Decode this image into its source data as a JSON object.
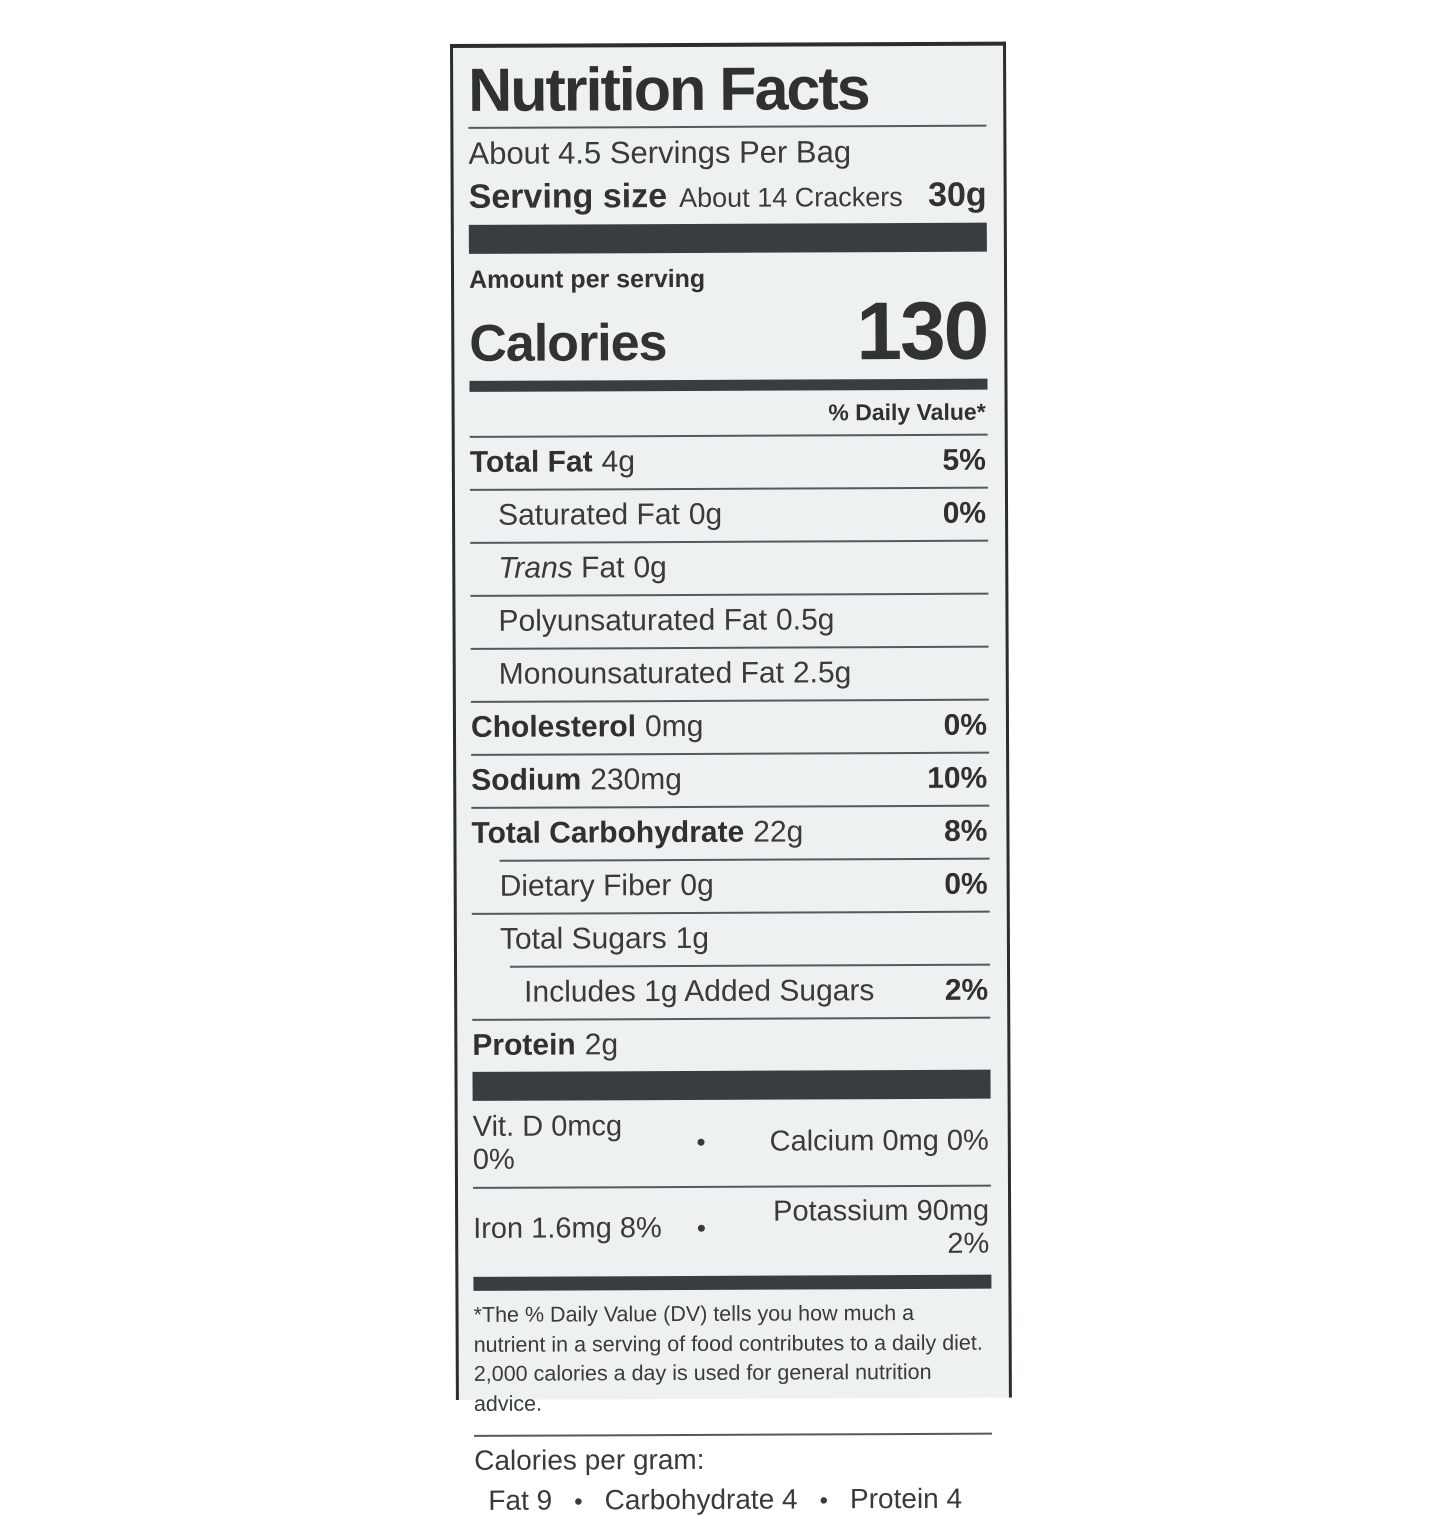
{
  "page": {
    "background": "#ffffff"
  },
  "label": {
    "title": "Nutrition Facts",
    "servings_per_bag": "About 4.5 Servings Per Bag",
    "serving_size": {
      "label": "Serving size",
      "detail": "About 14 Crackers",
      "weight": "30g"
    },
    "amount_per_serving": "Amount per serving",
    "calories": {
      "label": "Calories",
      "value": "130"
    },
    "daily_value_header": "% Daily Value*",
    "rows": [
      {
        "id": "total-fat",
        "name": "Total Fat",
        "bold": true,
        "value": "4g",
        "percent": "5%",
        "indent": 0,
        "sep": 0
      },
      {
        "id": "saturated-fat",
        "name": "Saturated Fat",
        "bold": false,
        "value": "0g",
        "percent": "0%",
        "indent": 1,
        "sep": 0
      },
      {
        "id": "trans-fat",
        "italic_prefix": "Trans",
        "name": " Fat",
        "bold": false,
        "value": "0g",
        "percent": "",
        "indent": 1,
        "sep": 0
      },
      {
        "id": "polyunsaturated-fat",
        "name": "Polyunsaturated Fat",
        "bold": false,
        "value": "0.5g",
        "percent": "",
        "indent": 1,
        "sep": 0
      },
      {
        "id": "monounsaturated-fat",
        "name": "Monounsaturated Fat",
        "bold": false,
        "value": "2.5g",
        "percent": "",
        "indent": 1,
        "sep": 0
      },
      {
        "id": "cholesterol",
        "name": "Cholesterol",
        "bold": true,
        "value": "0mg",
        "percent": "0%",
        "indent": 0,
        "sep": 0
      },
      {
        "id": "sodium",
        "name": "Sodium",
        "bold": true,
        "value": "230mg",
        "percent": "10%",
        "indent": 0,
        "sep": 0
      },
      {
        "id": "total-carbohydrate",
        "name": "Total Carbohydrate",
        "bold": true,
        "value": "22g",
        "percent": "8%",
        "indent": 0,
        "sep": 0
      },
      {
        "id": "dietary-fiber",
        "name": "Dietary Fiber",
        "bold": false,
        "value": "0g",
        "percent": "0%",
        "indent": 1,
        "sep": 1
      },
      {
        "id": "total-sugars",
        "name": "Total Sugars",
        "bold": false,
        "value": "1g",
        "percent": "",
        "indent": 1,
        "sep": 0
      },
      {
        "id": "added-sugars",
        "name": "Includes 1g Added Sugars",
        "bold": false,
        "value": "",
        "percent": "2%",
        "indent": 2,
        "sep": 2
      },
      {
        "id": "protein",
        "name": "Protein",
        "bold": true,
        "value": "2g",
        "percent": "",
        "indent": 0,
        "sep": 0
      }
    ],
    "micronutrients": [
      {
        "left": "Vit. D 0mcg 0%",
        "bullet": "•",
        "right": "Calcium 0mg 0%"
      },
      {
        "left": "Iron 1.6mg 8%",
        "bullet": "•",
        "right": "Potassium 90mg 2%"
      }
    ],
    "footnote": "*The % Daily Value (DV) tells you how much a nutrient in a serving of food contributes to a daily diet. 2,000 calories a day is used for general nutrition advice.",
    "calories_per_gram": {
      "label": "Calories per gram:",
      "items": [
        "Fat 9",
        "Carbohydrate 4",
        "Protein 4"
      ],
      "bullet": "•"
    },
    "colors": {
      "label_bg": "#eef1f2",
      "ink": "#303234",
      "bar": "#3a3d3f",
      "hairline": "#56595b"
    }
  }
}
